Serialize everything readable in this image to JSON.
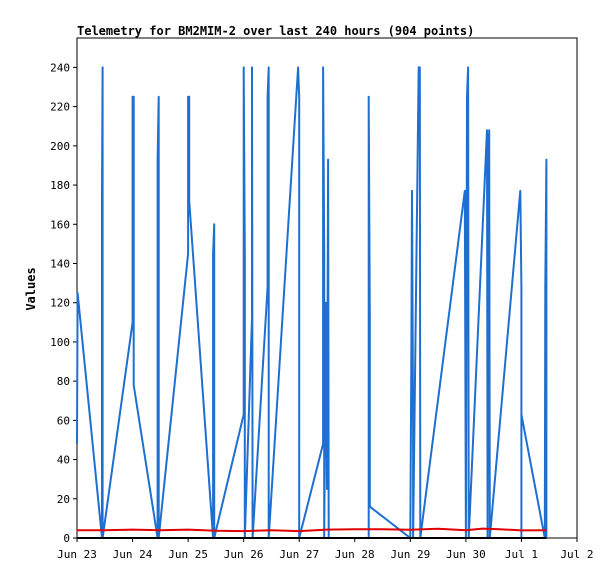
{
  "chart_data": {
    "type": "line",
    "title": "Telemetry for BM2MIM-2 over last 240 hours (904 points)",
    "xlabel": "",
    "ylabel": "Values",
    "ylim": [
      0,
      255
    ],
    "xlim": [
      0,
      9
    ],
    "y_ticks": [
      0,
      20,
      40,
      60,
      80,
      100,
      120,
      140,
      160,
      180,
      200,
      220,
      240
    ],
    "x_ticks": [
      {
        "x": 0,
        "label": "Jun 23"
      },
      {
        "x": 1,
        "label": "Jun 24"
      },
      {
        "x": 2,
        "label": "Jun 25"
      },
      {
        "x": 3,
        "label": "Jun 26"
      },
      {
        "x": 4,
        "label": "Jun 27"
      },
      {
        "x": 5,
        "label": "Jun 28"
      },
      {
        "x": 6,
        "label": "Jun 29"
      },
      {
        "x": 7,
        "label": "Jun 30"
      },
      {
        "x": 8,
        "label": "Jul 1"
      },
      {
        "x": 9,
        "label": "Jul 2"
      }
    ],
    "grid": false,
    "legend": "none",
    "series": [
      {
        "color": "#1f6fd0",
        "points": [
          [
            0.0,
            48
          ],
          [
            0.01,
            125
          ],
          [
            0.45,
            0
          ],
          [
            0.45,
            177
          ],
          [
            0.46,
            240
          ],
          [
            0.46,
            0
          ],
          [
            1.0,
            110
          ],
          [
            1.0,
            225
          ],
          [
            1.02,
            225
          ],
          [
            1.02,
            78
          ],
          [
            1.45,
            0
          ],
          [
            1.45,
            193
          ],
          [
            1.47,
            225
          ],
          [
            1.47,
            0
          ],
          [
            2.0,
            145
          ],
          [
            2.0,
            225
          ],
          [
            2.02,
            225
          ],
          [
            2.02,
            172
          ],
          [
            2.45,
            0
          ],
          [
            2.45,
            145
          ],
          [
            2.47,
            160
          ],
          [
            2.47,
            0
          ],
          [
            3.0,
            63
          ],
          [
            3.0,
            240
          ],
          [
            3.02,
            145
          ],
          [
            3.02,
            0
          ],
          [
            3.15,
            112
          ],
          [
            3.15,
            240
          ],
          [
            3.16,
            0
          ],
          [
            3.43,
            128
          ],
          [
            3.43,
            225
          ],
          [
            3.45,
            240
          ],
          [
            3.45,
            0
          ],
          [
            3.98,
            240
          ],
          [
            4.0,
            225
          ],
          [
            4.0,
            0
          ],
          [
            4.43,
            48
          ],
          [
            4.43,
            240
          ],
          [
            4.45,
            145
          ],
          [
            4.45,
            0
          ],
          [
            4.48,
            120
          ],
          [
            4.5,
            25
          ],
          [
            4.52,
            193
          ],
          [
            4.53,
            0
          ],
          [
            5.25,
            0
          ],
          [
            5.25,
            225
          ],
          [
            5.27,
            112
          ],
          [
            5.27,
            16
          ],
          [
            6.0,
            0
          ],
          [
            6.02,
            98
          ],
          [
            6.03,
            177
          ],
          [
            6.05,
            55
          ],
          [
            6.05,
            0
          ],
          [
            6.15,
            240
          ],
          [
            6.17,
            240
          ],
          [
            6.18,
            0
          ],
          [
            6.98,
            177
          ],
          [
            7.0,
            0
          ],
          [
            7.02,
            225
          ],
          [
            7.04,
            240
          ],
          [
            7.05,
            0
          ],
          [
            7.38,
            208
          ],
          [
            7.39,
            0
          ],
          [
            7.4,
            193
          ],
          [
            7.42,
            208
          ],
          [
            7.43,
            0
          ],
          [
            7.98,
            177
          ],
          [
            8.0,
            128
          ],
          [
            8.0,
            0
          ],
          [
            8.0,
            63
          ],
          [
            8.42,
            0
          ],
          [
            8.43,
            128
          ],
          [
            8.45,
            193
          ],
          [
            8.45,
            0
          ]
        ]
      },
      {
        "color": "#e00000",
        "points": [
          [
            0.0,
            4
          ],
          [
            0.5,
            4
          ],
          [
            1.0,
            4.3
          ],
          [
            1.5,
            4
          ],
          [
            2.0,
            4.3
          ],
          [
            2.5,
            3.7
          ],
          [
            3.0,
            3.5
          ],
          [
            3.5,
            4
          ],
          [
            4.0,
            3.5
          ],
          [
            4.5,
            4.3
          ],
          [
            5.0,
            4.5
          ],
          [
            5.5,
            4.5
          ],
          [
            6.0,
            4.2
          ],
          [
            6.5,
            4.7
          ],
          [
            7.0,
            4
          ],
          [
            7.3,
            4.8
          ],
          [
            7.6,
            4.5
          ],
          [
            8.0,
            3.9
          ],
          [
            8.45,
            4
          ]
        ]
      },
      {
        "color": "#000000",
        "points": [
          [
            0.0,
            0
          ],
          [
            8.45,
            0
          ]
        ]
      }
    ]
  }
}
